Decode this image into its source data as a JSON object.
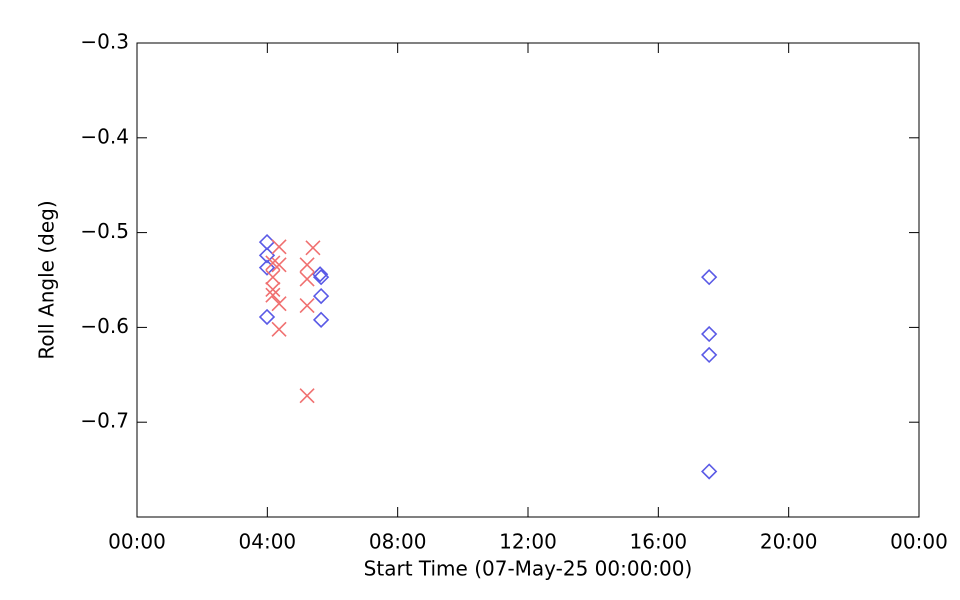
{
  "chart_data": {
    "type": "scatter",
    "xlabel": "Start Time (07-May-25 00:00:00)",
    "ylabel": "Roll Angle (deg)",
    "xlim": [
      0,
      24
    ],
    "xticks": [
      {
        "value": 0,
        "label": "00:00"
      },
      {
        "value": 4,
        "label": "04:00"
      },
      {
        "value": 8,
        "label": "08:00"
      },
      {
        "value": 12,
        "label": "12:00"
      },
      {
        "value": 16,
        "label": "16:00"
      },
      {
        "value": 20,
        "label": "20:00"
      },
      {
        "value": 24,
        "label": "00:00"
      }
    ],
    "ylim": [
      -0.8,
      -0.3
    ],
    "yticks": [
      {
        "value": -0.7,
        "label": "−0.7"
      },
      {
        "value": -0.6,
        "label": "−0.6"
      },
      {
        "value": -0.5,
        "label": "−0.5"
      },
      {
        "value": -0.4,
        "label": "−0.4"
      },
      {
        "value": -0.3,
        "label": "−0.3"
      }
    ],
    "series": [
      {
        "marker": "diamond",
        "color": "#5a5ae6",
        "x": [
          3.99,
          3.99,
          3.99,
          3.99,
          5.62,
          5.65,
          5.65,
          5.65,
          17.56,
          17.56,
          17.56,
          17.56
        ],
        "values": [
          -0.51,
          -0.524,
          -0.537,
          -0.589,
          -0.544,
          -0.547,
          -0.567,
          -0.592,
          -0.547,
          -0.607,
          -0.629,
          -0.752
        ]
      },
      {
        "marker": "cross",
        "color": "#f07070",
        "x": [
          4.36,
          4.17,
          4.17,
          4.17,
          4.17,
          4.36,
          4.36,
          4.36,
          5.4,
          5.22,
          5.22,
          5.22,
          5.22
        ],
        "values": [
          -0.515,
          -0.532,
          -0.547,
          -0.56,
          -0.566,
          -0.534,
          -0.575,
          -0.602,
          -0.516,
          -0.534,
          -0.549,
          -0.577,
          -0.672
        ]
      }
    ]
  }
}
